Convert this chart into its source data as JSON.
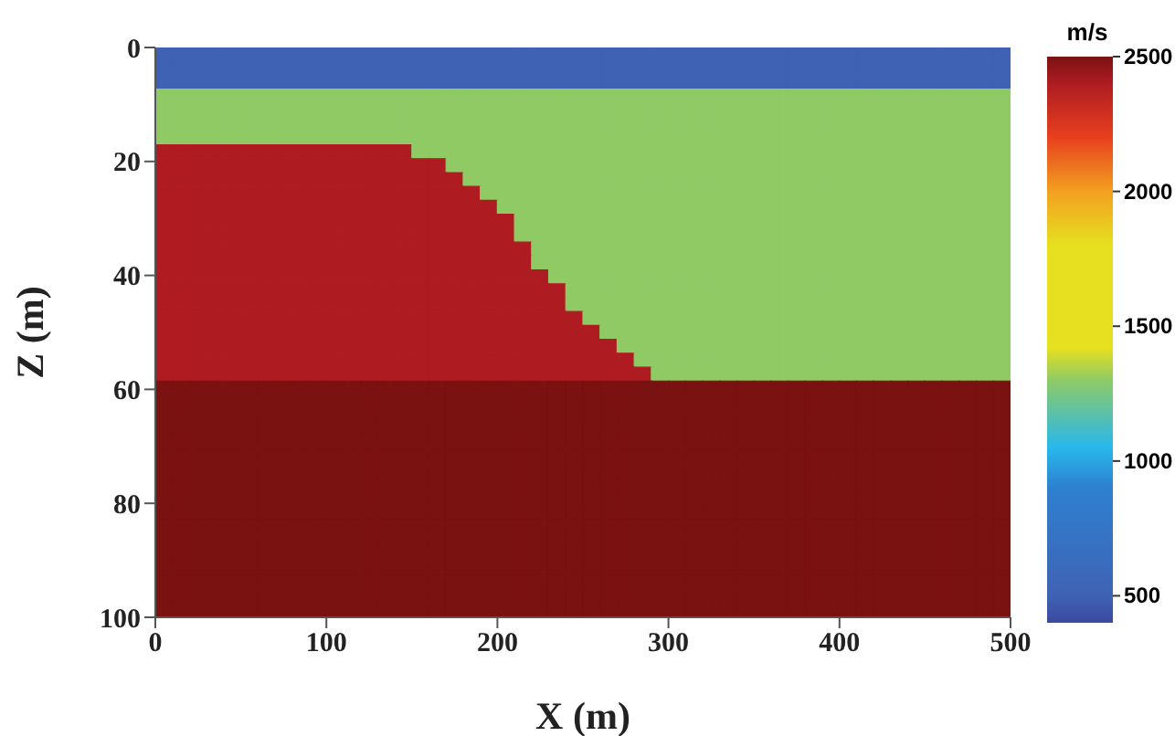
{
  "chart_data": {
    "type": "heatmap",
    "xlabel": "X (m)",
    "ylabel": "Z (m)",
    "clabel": "m/s",
    "xlim": [
      0,
      500
    ],
    "xticks": [
      0,
      100,
      200,
      300,
      400,
      500
    ],
    "ylim": [
      100,
      0
    ],
    "yticks": [
      0,
      20,
      40,
      60,
      80,
      100
    ],
    "clim": [
      400,
      2500
    ],
    "cticks": [
      500,
      1000,
      1500,
      2000,
      2500
    ],
    "cells": [
      [
        500,
        500,
        500,
        500,
        500,
        500,
        500,
        500,
        500,
        500,
        500,
        500,
        500,
        500,
        500,
        500,
        500,
        500,
        500,
        500,
        500,
        500,
        500,
        500,
        500,
        500,
        500,
        500,
        500,
        500,
        500,
        500,
        500,
        500,
        500,
        500,
        500,
        500,
        500,
        500,
        500,
        500,
        500,
        500,
        500,
        500,
        500,
        500,
        500,
        500
      ],
      [
        500,
        500,
        500,
        500,
        500,
        500,
        500,
        500,
        500,
        500,
        500,
        500,
        500,
        500,
        500,
        500,
        500,
        500,
        500,
        500,
        500,
        500,
        500,
        500,
        500,
        500,
        500,
        500,
        500,
        500,
        500,
        500,
        500,
        500,
        500,
        500,
        500,
        500,
        500,
        500,
        500,
        500,
        500,
        500,
        500,
        500,
        500,
        500,
        500,
        500
      ],
      [
        500,
        500,
        500,
        500,
        500,
        500,
        500,
        500,
        500,
        500,
        500,
        500,
        500,
        500,
        500,
        500,
        500,
        500,
        500,
        500,
        500,
        500,
        500,
        500,
        500,
        500,
        500,
        500,
        500,
        500,
        500,
        500,
        500,
        500,
        500,
        500,
        500,
        500,
        500,
        500,
        500,
        500,
        500,
        500,
        500,
        500,
        500,
        500,
        500,
        500
      ],
      [
        1300,
        1300,
        1300,
        1300,
        1300,
        1300,
        1300,
        1300,
        1300,
        1300,
        1300,
        1300,
        1300,
        1300,
        1300,
        1300,
        1300,
        1300,
        1300,
        1300,
        1300,
        1300,
        1300,
        1300,
        1300,
        1300,
        1300,
        1300,
        1300,
        1300,
        1300,
        1300,
        1300,
        1300,
        1300,
        1300,
        1300,
        1300,
        1300,
        1300,
        1300,
        1300,
        1300,
        1300,
        1300,
        1300,
        1300,
        1300,
        1300,
        1300
      ],
      [
        1300,
        1300,
        1300,
        1300,
        1300,
        1300,
        1300,
        1300,
        1300,
        1300,
        1300,
        1300,
        1300,
        1300,
        1300,
        1300,
        1300,
        1300,
        1300,
        1300,
        1300,
        1300,
        1300,
        1300,
        1300,
        1300,
        1300,
        1300,
        1300,
        1300,
        1300,
        1300,
        1300,
        1300,
        1300,
        1300,
        1300,
        1300,
        1300,
        1300,
        1300,
        1300,
        1300,
        1300,
        1300,
        1300,
        1300,
        1300,
        1300,
        1300
      ],
      [
        1300,
        1300,
        1300,
        1300,
        1300,
        1300,
        1300,
        1300,
        1300,
        1300,
        1300,
        1300,
        1300,
        1300,
        1300,
        1300,
        1300,
        1300,
        1300,
        1300,
        1300,
        1300,
        1300,
        1300,
        1300,
        1300,
        1300,
        1300,
        1300,
        1300,
        1300,
        1300,
        1300,
        1300,
        1300,
        1300,
        1300,
        1300,
        1300,
        1300,
        1300,
        1300,
        1300,
        1300,
        1300,
        1300,
        1300,
        1300,
        1300,
        1300
      ],
      [
        1300,
        1300,
        1300,
        1300,
        1300,
        1300,
        1300,
        1300,
        1300,
        1300,
        1300,
        1300,
        1300,
        1300,
        1300,
        1300,
        1300,
        1300,
        1300,
        1300,
        1300,
        1300,
        1300,
        1300,
        1300,
        1300,
        1300,
        1300,
        1300,
        1300,
        1300,
        1300,
        1300,
        1300,
        1300,
        1300,
        1300,
        1300,
        1300,
        1300,
        1300,
        1300,
        1300,
        1300,
        1300,
        1300,
        1300,
        1300,
        1300,
        1300
      ],
      [
        2400,
        2400,
        2400,
        2400,
        2400,
        2400,
        2400,
        2400,
        2400,
        2400,
        2400,
        2400,
        2400,
        2400,
        2400,
        1300,
        1300,
        1300,
        1300,
        1300,
        1300,
        1300,
        1300,
        1300,
        1300,
        1300,
        1300,
        1300,
        1300,
        1300,
        1300,
        1300,
        1300,
        1300,
        1300,
        1300,
        1300,
        1300,
        1300,
        1300,
        1300,
        1300,
        1300,
        1300,
        1300,
        1300,
        1300,
        1300,
        1300,
        1300
      ],
      [
        2400,
        2400,
        2400,
        2400,
        2400,
        2400,
        2400,
        2400,
        2400,
        2400,
        2400,
        2400,
        2400,
        2400,
        2400,
        2400,
        2400,
        1300,
        1300,
        1300,
        1300,
        1300,
        1300,
        1300,
        1300,
        1300,
        1300,
        1300,
        1300,
        1300,
        1300,
        1300,
        1300,
        1300,
        1300,
        1300,
        1300,
        1300,
        1300,
        1300,
        1300,
        1300,
        1300,
        1300,
        1300,
        1300,
        1300,
        1300,
        1300,
        1300
      ],
      [
        2400,
        2400,
        2400,
        2400,
        2400,
        2400,
        2400,
        2400,
        2400,
        2400,
        2400,
        2400,
        2400,
        2400,
        2400,
        2400,
        2400,
        2400,
        1300,
        1300,
        1300,
        1300,
        1300,
        1300,
        1300,
        1300,
        1300,
        1300,
        1300,
        1300,
        1300,
        1300,
        1300,
        1300,
        1300,
        1300,
        1300,
        1300,
        1300,
        1300,
        1300,
        1300,
        1300,
        1300,
        1300,
        1300,
        1300,
        1300,
        1300,
        1300
      ],
      [
        2400,
        2400,
        2400,
        2400,
        2400,
        2400,
        2400,
        2400,
        2400,
        2400,
        2400,
        2400,
        2400,
        2400,
        2400,
        2400,
        2400,
        2400,
        2400,
        1300,
        1300,
        1300,
        1300,
        1300,
        1300,
        1300,
        1300,
        1300,
        1300,
        1300,
        1300,
        1300,
        1300,
        1300,
        1300,
        1300,
        1300,
        1300,
        1300,
        1300,
        1300,
        1300,
        1300,
        1300,
        1300,
        1300,
        1300,
        1300,
        1300,
        1300
      ],
      [
        2400,
        2400,
        2400,
        2400,
        2400,
        2400,
        2400,
        2400,
        2400,
        2400,
        2400,
        2400,
        2400,
        2400,
        2400,
        2400,
        2400,
        2400,
        2400,
        2400,
        1300,
        1300,
        1300,
        1300,
        1300,
        1300,
        1300,
        1300,
        1300,
        1300,
        1300,
        1300,
        1300,
        1300,
        1300,
        1300,
        1300,
        1300,
        1300,
        1300,
        1300,
        1300,
        1300,
        1300,
        1300,
        1300,
        1300,
        1300,
        1300,
        1300
      ],
      [
        2400,
        2400,
        2400,
        2400,
        2400,
        2400,
        2400,
        2400,
        2400,
        2400,
        2400,
        2400,
        2400,
        2400,
        2400,
        2400,
        2400,
        2400,
        2400,
        2400,
        2400,
        1300,
        1300,
        1300,
        1300,
        1300,
        1300,
        1300,
        1300,
        1300,
        1300,
        1300,
        1300,
        1300,
        1300,
        1300,
        1300,
        1300,
        1300,
        1300,
        1300,
        1300,
        1300,
        1300,
        1300,
        1300,
        1300,
        1300,
        1300,
        1300
      ],
      [
        2400,
        2400,
        2400,
        2400,
        2400,
        2400,
        2400,
        2400,
        2400,
        2400,
        2400,
        2400,
        2400,
        2400,
        2400,
        2400,
        2400,
        2400,
        2400,
        2400,
        2400,
        1300,
        1300,
        1300,
        1300,
        1300,
        1300,
        1300,
        1300,
        1300,
        1300,
        1300,
        1300,
        1300,
        1300,
        1300,
        1300,
        1300,
        1300,
        1300,
        1300,
        1300,
        1300,
        1300,
        1300,
        1300,
        1300,
        1300,
        1300,
        1300
      ],
      [
        2400,
        2400,
        2400,
        2400,
        2400,
        2400,
        2400,
        2400,
        2400,
        2400,
        2400,
        2400,
        2400,
        2400,
        2400,
        2400,
        2400,
        2400,
        2400,
        2400,
        2400,
        2400,
        1300,
        1300,
        1300,
        1300,
        1300,
        1300,
        1300,
        1300,
        1300,
        1300,
        1300,
        1300,
        1300,
        1300,
        1300,
        1300,
        1300,
        1300,
        1300,
        1300,
        1300,
        1300,
        1300,
        1300,
        1300,
        1300,
        1300,
        1300
      ],
      [
        2400,
        2400,
        2400,
        2400,
        2400,
        2400,
        2400,
        2400,
        2400,
        2400,
        2400,
        2400,
        2400,
        2400,
        2400,
        2400,
        2400,
        2400,
        2400,
        2400,
        2400,
        2400,
        1300,
        1300,
        1300,
        1300,
        1300,
        1300,
        1300,
        1300,
        1300,
        1300,
        1300,
        1300,
        1300,
        1300,
        1300,
        1300,
        1300,
        1300,
        1300,
        1300,
        1300,
        1300,
        1300,
        1300,
        1300,
        1300,
        1300,
        1300
      ],
      [
        2400,
        2400,
        2400,
        2400,
        2400,
        2400,
        2400,
        2400,
        2400,
        2400,
        2400,
        2400,
        2400,
        2400,
        2400,
        2400,
        2400,
        2400,
        2400,
        2400,
        2400,
        2400,
        2400,
        1300,
        1300,
        1300,
        1300,
        1300,
        1300,
        1300,
        1300,
        1300,
        1300,
        1300,
        1300,
        1300,
        1300,
        1300,
        1300,
        1300,
        1300,
        1300,
        1300,
        1300,
        1300,
        1300,
        1300,
        1300,
        1300,
        1300
      ],
      [
        2400,
        2400,
        2400,
        2400,
        2400,
        2400,
        2400,
        2400,
        2400,
        2400,
        2400,
        2400,
        2400,
        2400,
        2400,
        2400,
        2400,
        2400,
        2400,
        2400,
        2400,
        2400,
        2400,
        2400,
        1300,
        1300,
        1300,
        1300,
        1300,
        1300,
        1300,
        1300,
        1300,
        1300,
        1300,
        1300,
        1300,
        1300,
        1300,
        1300,
        1300,
        1300,
        1300,
        1300,
        1300,
        1300,
        1300,
        1300,
        1300,
        1300
      ],
      [
        2400,
        2400,
        2400,
        2400,
        2400,
        2400,
        2400,
        2400,
        2400,
        2400,
        2400,
        2400,
        2400,
        2400,
        2400,
        2400,
        2400,
        2400,
        2400,
        2400,
        2400,
        2400,
        2400,
        2400,
        1300,
        1300,
        1300,
        1300,
        1300,
        1300,
        1300,
        1300,
        1300,
        1300,
        1300,
        1300,
        1300,
        1300,
        1300,
        1300,
        1300,
        1300,
        1300,
        1300,
        1300,
        1300,
        1300,
        1300,
        1300,
        1300
      ],
      [
        2400,
        2400,
        2400,
        2400,
        2400,
        2400,
        2400,
        2400,
        2400,
        2400,
        2400,
        2400,
        2400,
        2400,
        2400,
        2400,
        2400,
        2400,
        2400,
        2400,
        2400,
        2400,
        2400,
        2400,
        2400,
        1300,
        1300,
        1300,
        1300,
        1300,
        1300,
        1300,
        1300,
        1300,
        1300,
        1300,
        1300,
        1300,
        1300,
        1300,
        1300,
        1300,
        1300,
        1300,
        1300,
        1300,
        1300,
        1300,
        1300,
        1300
      ],
      [
        2400,
        2400,
        2400,
        2400,
        2400,
        2400,
        2400,
        2400,
        2400,
        2400,
        2400,
        2400,
        2400,
        2400,
        2400,
        2400,
        2400,
        2400,
        2400,
        2400,
        2400,
        2400,
        2400,
        2400,
        2400,
        2400,
        1300,
        1300,
        1300,
        1300,
        1300,
        1300,
        1300,
        1300,
        1300,
        1300,
        1300,
        1300,
        1300,
        1300,
        1300,
        1300,
        1300,
        1300,
        1300,
        1300,
        1300,
        1300,
        1300,
        1300
      ],
      [
        2400,
        2400,
        2400,
        2400,
        2400,
        2400,
        2400,
        2400,
        2400,
        2400,
        2400,
        2400,
        2400,
        2400,
        2400,
        2400,
        2400,
        2400,
        2400,
        2400,
        2400,
        2400,
        2400,
        2400,
        2400,
        2400,
        2400,
        1300,
        1300,
        1300,
        1300,
        1300,
        1300,
        1300,
        1300,
        1300,
        1300,
        1300,
        1300,
        1300,
        1300,
        1300,
        1300,
        1300,
        1300,
        1300,
        1300,
        1300,
        1300,
        1300
      ],
      [
        2400,
        2400,
        2400,
        2400,
        2400,
        2400,
        2400,
        2400,
        2400,
        2400,
        2400,
        2400,
        2400,
        2400,
        2400,
        2400,
        2400,
        2400,
        2400,
        2400,
        2400,
        2400,
        2400,
        2400,
        2400,
        2400,
        2400,
        2400,
        1300,
        1300,
        1300,
        1300,
        1300,
        1300,
        1300,
        1300,
        1300,
        1300,
        1300,
        1300,
        1300,
        1300,
        1300,
        1300,
        1300,
        1300,
        1300,
        1300,
        1300,
        1300
      ],
      [
        2400,
        2400,
        2400,
        2400,
        2400,
        2400,
        2400,
        2400,
        2400,
        2400,
        2400,
        2400,
        2400,
        2400,
        2400,
        2400,
        2400,
        2400,
        2400,
        2400,
        2400,
        2400,
        2400,
        2400,
        2400,
        2400,
        2400,
        2400,
        2400,
        1300,
        1300,
        1300,
        1300,
        1300,
        1300,
        1300,
        1300,
        1300,
        1300,
        1300,
        1300,
        1300,
        1300,
        1300,
        1300,
        1300,
        1300,
        1300,
        1300,
        1300
      ],
      [
        2500,
        2500,
        2500,
        2500,
        2500,
        2500,
        2500,
        2500,
        2500,
        2500,
        2500,
        2500,
        2500,
        2500,
        2500,
        2500,
        2500,
        2500,
        2500,
        2500,
        2500,
        2500,
        2500,
        2500,
        2500,
        2500,
        2500,
        2500,
        2500,
        2500,
        2500,
        2500,
        2500,
        2500,
        2500,
        2500,
        2500,
        2500,
        2500,
        2500,
        2500,
        2500,
        2500,
        2500,
        2500,
        2500,
        2500,
        2500,
        2500,
        2500
      ],
      [
        2500,
        2500,
        2500,
        2500,
        2500,
        2500,
        2500,
        2500,
        2500,
        2500,
        2500,
        2500,
        2500,
        2500,
        2500,
        2500,
        2500,
        2500,
        2500,
        2500,
        2500,
        2500,
        2500,
        2500,
        2500,
        2500,
        2500,
        2500,
        2500,
        2500,
        2500,
        2500,
        2500,
        2500,
        2500,
        2500,
        2500,
        2500,
        2500,
        2500,
        2500,
        2500,
        2500,
        2500,
        2500,
        2500,
        2500,
        2500,
        2500,
        2500
      ],
      [
        2500,
        2500,
        2500,
        2500,
        2500,
        2500,
        2500,
        2500,
        2500,
        2500,
        2500,
        2500,
        2500,
        2500,
        2500,
        2500,
        2500,
        2500,
        2500,
        2500,
        2500,
        2500,
        2500,
        2500,
        2500,
        2500,
        2500,
        2500,
        2500,
        2500,
        2500,
        2500,
        2500,
        2500,
        2500,
        2500,
        2500,
        2500,
        2500,
        2500,
        2500,
        2500,
        2500,
        2500,
        2500,
        2500,
        2500,
        2500,
        2500,
        2500
      ],
      [
        2500,
        2500,
        2500,
        2500,
        2500,
        2500,
        2500,
        2500,
        2500,
        2500,
        2500,
        2500,
        2500,
        2500,
        2500,
        2500,
        2500,
        2500,
        2500,
        2500,
        2500,
        2500,
        2500,
        2500,
        2500,
        2500,
        2500,
        2500,
        2500,
        2500,
        2500,
        2500,
        2500,
        2500,
        2500,
        2500,
        2500,
        2500,
        2500,
        2500,
        2500,
        2500,
        2500,
        2500,
        2500,
        2500,
        2500,
        2500,
        2500,
        2500
      ],
      [
        2500,
        2500,
        2500,
        2500,
        2500,
        2500,
        2500,
        2500,
        2500,
        2500,
        2500,
        2500,
        2500,
        2500,
        2500,
        2500,
        2500,
        2500,
        2500,
        2500,
        2500,
        2500,
        2500,
        2500,
        2500,
        2500,
        2500,
        2500,
        2500,
        2500,
        2500,
        2500,
        2500,
        2500,
        2500,
        2500,
        2500,
        2500,
        2500,
        2500,
        2500,
        2500,
        2500,
        2500,
        2500,
        2500,
        2500,
        2500,
        2500,
        2500
      ],
      [
        2500,
        2500,
        2500,
        2500,
        2500,
        2500,
        2500,
        2500,
        2500,
        2500,
        2500,
        2500,
        2500,
        2500,
        2500,
        2500,
        2500,
        2500,
        2500,
        2500,
        2500,
        2500,
        2500,
        2500,
        2500,
        2500,
        2500,
        2500,
        2500,
        2500,
        2500,
        2500,
        2500,
        2500,
        2500,
        2500,
        2500,
        2500,
        2500,
        2500,
        2500,
        2500,
        2500,
        2500,
        2500,
        2500,
        2500,
        2500,
        2500,
        2500
      ],
      [
        2500,
        2500,
        2500,
        2500,
        2500,
        2500,
        2500,
        2500,
        2500,
        2500,
        2500,
        2500,
        2500,
        2500,
        2500,
        2500,
        2500,
        2500,
        2500,
        2500,
        2500,
        2500,
        2500,
        2500,
        2500,
        2500,
        2500,
        2500,
        2500,
        2500,
        2500,
        2500,
        2500,
        2500,
        2500,
        2500,
        2500,
        2500,
        2500,
        2500,
        2500,
        2500,
        2500,
        2500,
        2500,
        2500,
        2500,
        2500,
        2500,
        2500
      ],
      [
        2500,
        2500,
        2500,
        2500,
        2500,
        2500,
        2500,
        2500,
        2500,
        2500,
        2500,
        2500,
        2500,
        2500,
        2500,
        2500,
        2500,
        2500,
        2500,
        2500,
        2500,
        2500,
        2500,
        2500,
        2500,
        2500,
        2500,
        2500,
        2500,
        2500,
        2500,
        2500,
        2500,
        2500,
        2500,
        2500,
        2500,
        2500,
        2500,
        2500,
        2500,
        2500,
        2500,
        2500,
        2500,
        2500,
        2500,
        2500,
        2500,
        2500
      ],
      [
        2500,
        2500,
        2500,
        2500,
        2500,
        2500,
        2500,
        2500,
        2500,
        2500,
        2500,
        2500,
        2500,
        2500,
        2500,
        2500,
        2500,
        2500,
        2500,
        2500,
        2500,
        2500,
        2500,
        2500,
        2500,
        2500,
        2500,
        2500,
        2500,
        2500,
        2500,
        2500,
        2500,
        2500,
        2500,
        2500,
        2500,
        2500,
        2500,
        2500,
        2500,
        2500,
        2500,
        2500,
        2500,
        2500,
        2500,
        2500,
        2500,
        2500
      ],
      [
        2500,
        2500,
        2500,
        2500,
        2500,
        2500,
        2500,
        2500,
        2500,
        2500,
        2500,
        2500,
        2500,
        2500,
        2500,
        2500,
        2500,
        2500,
        2500,
        2500,
        2500,
        2500,
        2500,
        2500,
        2500,
        2500,
        2500,
        2500,
        2500,
        2500,
        2500,
        2500,
        2500,
        2500,
        2500,
        2500,
        2500,
        2500,
        2500,
        2500,
        2500,
        2500,
        2500,
        2500,
        2500,
        2500,
        2500,
        2500,
        2500,
        2500
      ],
      [
        2500,
        2500,
        2500,
        2500,
        2500,
        2500,
        2500,
        2500,
        2500,
        2500,
        2500,
        2500,
        2500,
        2500,
        2500,
        2500,
        2500,
        2500,
        2500,
        2500,
        2500,
        2500,
        2500,
        2500,
        2500,
        2500,
        2500,
        2500,
        2500,
        2500,
        2500,
        2500,
        2500,
        2500,
        2500,
        2500,
        2500,
        2500,
        2500,
        2500,
        2500,
        2500,
        2500,
        2500,
        2500,
        2500,
        2500,
        2500,
        2500,
        2500
      ],
      [
        2500,
        2500,
        2500,
        2500,
        2500,
        2500,
        2500,
        2500,
        2500,
        2500,
        2500,
        2500,
        2500,
        2500,
        2500,
        2500,
        2500,
        2500,
        2500,
        2500,
        2500,
        2500,
        2500,
        2500,
        2500,
        2500,
        2500,
        2500,
        2500,
        2500,
        2500,
        2500,
        2500,
        2500,
        2500,
        2500,
        2500,
        2500,
        2500,
        2500,
        2500,
        2500,
        2500,
        2500,
        2500,
        2500,
        2500,
        2500,
        2500,
        2500
      ],
      [
        2500,
        2500,
        2500,
        2500,
        2500,
        2500,
        2500,
        2500,
        2500,
        2500,
        2500,
        2500,
        2500,
        2500,
        2500,
        2500,
        2500,
        2500,
        2500,
        2500,
        2500,
        2500,
        2500,
        2500,
        2500,
        2500,
        2500,
        2500,
        2500,
        2500,
        2500,
        2500,
        2500,
        2500,
        2500,
        2500,
        2500,
        2500,
        2500,
        2500,
        2500,
        2500,
        2500,
        2500,
        2500,
        2500,
        2500,
        2500,
        2500,
        2500
      ],
      [
        2500,
        2500,
        2500,
        2500,
        2500,
        2500,
        2500,
        2500,
        2500,
        2500,
        2500,
        2500,
        2500,
        2500,
        2500,
        2500,
        2500,
        2500,
        2500,
        2500,
        2500,
        2500,
        2500,
        2500,
        2500,
        2500,
        2500,
        2500,
        2500,
        2500,
        2500,
        2500,
        2500,
        2500,
        2500,
        2500,
        2500,
        2500,
        2500,
        2500,
        2500,
        2500,
        2500,
        2500,
        2500,
        2500,
        2500,
        2500,
        2500,
        2500
      ],
      [
        2500,
        2500,
        2500,
        2500,
        2500,
        2500,
        2500,
        2500,
        2500,
        2500,
        2500,
        2500,
        2500,
        2500,
        2500,
        2500,
        2500,
        2500,
        2500,
        2500,
        2500,
        2500,
        2500,
        2500,
        2500,
        2500,
        2500,
        2500,
        2500,
        2500,
        2500,
        2500,
        2500,
        2500,
        2500,
        2500,
        2500,
        2500,
        2500,
        2500,
        2500,
        2500,
        2500,
        2500,
        2500,
        2500,
        2500,
        2500,
        2500,
        2500
      ],
      [
        2500,
        2500,
        2500,
        2500,
        2500,
        2500,
        2500,
        2500,
        2500,
        2500,
        2500,
        2500,
        2500,
        2500,
        2500,
        2500,
        2500,
        2500,
        2500,
        2500,
        2500,
        2500,
        2500,
        2500,
        2500,
        2500,
        2500,
        2500,
        2500,
        2500,
        2500,
        2500,
        2500,
        2500,
        2500,
        2500,
        2500,
        2500,
        2500,
        2500,
        2500,
        2500,
        2500,
        2500,
        2500,
        2500,
        2500,
        2500,
        2500,
        2500
      ],
      [
        2500,
        2500,
        2500,
        2500,
        2500,
        2500,
        2500,
        2500,
        2500,
        2500,
        2500,
        2500,
        2500,
        2500,
        2500,
        2500,
        2500,
        2500,
        2500,
        2500,
        2500,
        2500,
        2500,
        2500,
        2500,
        2500,
        2500,
        2500,
        2500,
        2500,
        2500,
        2500,
        2500,
        2500,
        2500,
        2500,
        2500,
        2500,
        2500,
        2500,
        2500,
        2500,
        2500,
        2500,
        2500,
        2500,
        2500,
        2500,
        2500,
        2500
      ]
    ]
  }
}
